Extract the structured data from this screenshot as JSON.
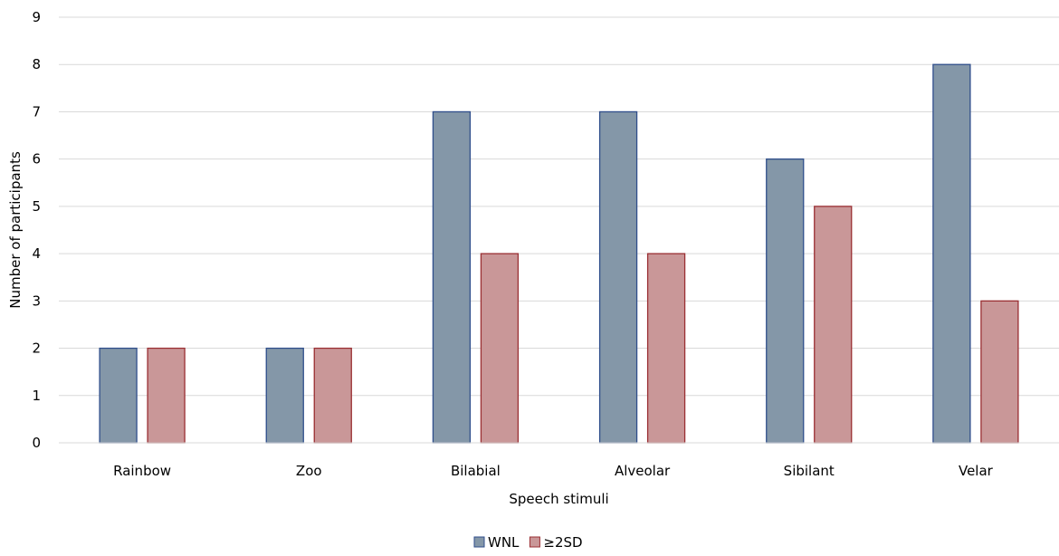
{
  "chart_data": {
    "type": "bar",
    "title": "",
    "xlabel": "Speech stimuli",
    "ylabel": "Number of participants",
    "categories": [
      "Rainbow",
      "Zoo",
      "Bilabial",
      "Alveolar",
      "Sibilant",
      "Velar"
    ],
    "series": [
      {
        "name": "WNL",
        "values": [
          2,
          2,
          7,
          7,
          6,
          8
        ],
        "fill": "#8497a8",
        "stroke": "#2f4e8b"
      },
      {
        "name": "≥2SD",
        "values": [
          2,
          2,
          4,
          4,
          5,
          3
        ],
        "fill": "#c99798",
        "stroke": "#9a2f33"
      }
    ],
    "ylim": [
      0,
      9
    ],
    "yticks": [
      0,
      1,
      2,
      3,
      4,
      5,
      6,
      7,
      8,
      9
    ],
    "grid": true,
    "legend_position": "bottom"
  }
}
